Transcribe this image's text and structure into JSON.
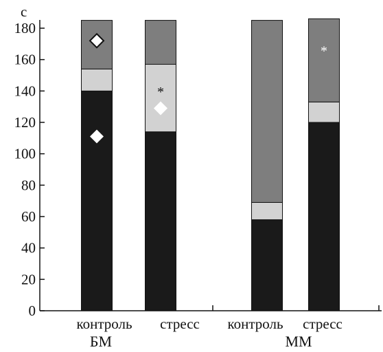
{
  "chart_data": {
    "type": "bar",
    "stacked": true,
    "ylabel": "с",
    "ylim": [
      0,
      180
    ],
    "yticks": [
      0,
      20,
      40,
      60,
      80,
      100,
      120,
      140,
      160,
      180
    ],
    "categories": [
      "контроль",
      "стресс",
      "контроль",
      "стресс"
    ],
    "groups": [
      {
        "label": "БМ",
        "categories": [
          0,
          1
        ]
      },
      {
        "label": "ММ",
        "categories": [
          2,
          3
        ]
      }
    ],
    "series": [
      {
        "color": "#1a1a1a",
        "values": [
          140,
          114,
          58,
          120
        ]
      },
      {
        "color": "#d2d2d2",
        "values": [
          14,
          43,
          11,
          13
        ]
      },
      {
        "color": "#7e7e7e",
        "values": [
          31,
          28,
          116,
          53
        ]
      }
    ],
    "markers": [
      {
        "category": 0,
        "y": 172,
        "shape": "diamond",
        "style": "outlined"
      },
      {
        "category": 0,
        "y": 111,
        "shape": "diamond",
        "style": "filled-white"
      },
      {
        "category": 1,
        "y": 129,
        "shape": "diamond",
        "style": "filled-white"
      },
      {
        "category": 1,
        "y": 142,
        "shape": "asterisk",
        "color": "#111111"
      },
      {
        "category": 3,
        "y": 168,
        "shape": "asterisk",
        "color": "#ffffff"
      }
    ],
    "marker_symbols": {
      "asterisk": "*"
    }
  }
}
